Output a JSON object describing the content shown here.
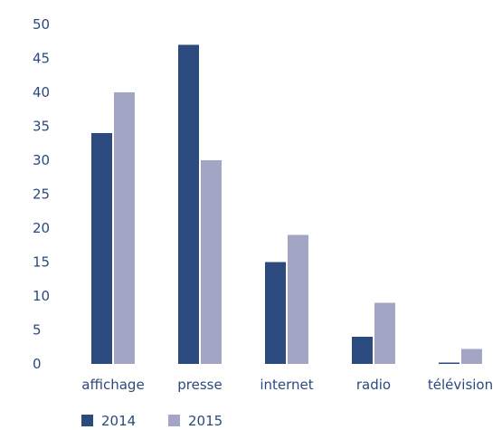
{
  "chart_data": {
    "type": "bar",
    "title": "",
    "xlabel": "",
    "ylabel": "",
    "categories": [
      "affichage",
      "presse",
      "internet",
      "radio",
      "télévision"
    ],
    "series": [
      {
        "name": "2014",
        "values": [
          34,
          47,
          15,
          4,
          0.2
        ],
        "color": "#2b4a7e"
      },
      {
        "name": "2015",
        "values": [
          40,
          30,
          19,
          9,
          2.2
        ],
        "color": "#a2a5c3"
      }
    ],
    "ylim": [
      0,
      50
    ],
    "yticks": [
      0,
      5,
      10,
      15,
      20,
      25,
      30,
      35,
      40,
      45,
      50
    ],
    "grid": false,
    "legend": "bottom-left",
    "text_color": "#2b4a7e"
  }
}
